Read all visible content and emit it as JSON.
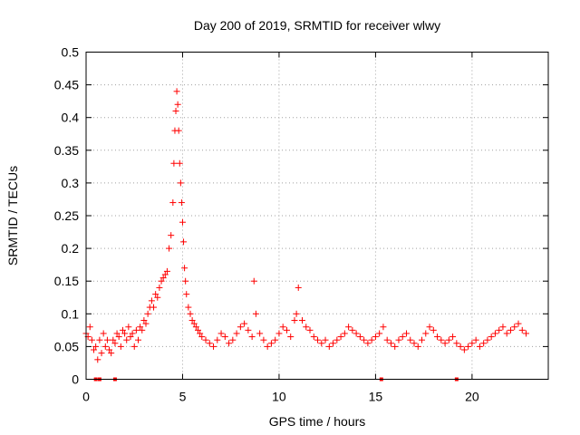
{
  "chart_data": {
    "type": "scatter",
    "title": "Day 200 of 2019, SRMTID for receiver wlwy",
    "xlabel": "GPS time / hours",
    "ylabel": "SRMTID / TECUs",
    "xlim": [
      0,
      23.95
    ],
    "ylim": [
      0,
      0.5
    ],
    "xticks": [
      0,
      5,
      10,
      15,
      20
    ],
    "xtick_labels": [
      "0",
      "5",
      "10",
      "15",
      "20"
    ],
    "yticks": [
      0,
      0.05,
      0.1,
      0.15,
      0.2,
      0.25,
      0.3,
      0.35,
      0.4,
      0.45,
      0.5
    ],
    "ytick_labels": [
      "0",
      "0.05",
      "0.1",
      "0.15",
      "0.2",
      "0.25",
      "0.3",
      "0.35",
      "0.4",
      "0.45",
      "0.5"
    ],
    "grid": true,
    "marker": "+",
    "color": "#ff0000",
    "baseline_markers_x": [
      0.5,
      0.7,
      1.5,
      15.3,
      19.2
    ],
    "series": [
      {
        "name": "SRMTID",
        "x": [
          0.0,
          0.1,
          0.2,
          0.3,
          0.4,
          0.5,
          0.6,
          0.7,
          0.8,
          0.9,
          1.0,
          1.1,
          1.2,
          1.3,
          1.4,
          1.5,
          1.6,
          1.7,
          1.8,
          1.9,
          2.0,
          2.1,
          2.2,
          2.3,
          2.4,
          2.5,
          2.6,
          2.7,
          2.8,
          2.9,
          3.0,
          3.1,
          3.2,
          3.3,
          3.4,
          3.5,
          3.6,
          3.7,
          3.8,
          3.9,
          4.0,
          4.1,
          4.2,
          4.3,
          4.4,
          4.5,
          4.55,
          4.6,
          4.65,
          4.7,
          4.75,
          4.8,
          4.85,
          4.9,
          4.95,
          5.0,
          5.05,
          5.1,
          5.15,
          5.2,
          5.3,
          5.4,
          5.5,
          5.6,
          5.7,
          5.8,
          5.9,
          6.0,
          6.2,
          6.4,
          6.6,
          6.8,
          7.0,
          7.2,
          7.4,
          7.6,
          7.8,
          8.0,
          8.2,
          8.4,
          8.6,
          8.7,
          8.8,
          9.0,
          9.2,
          9.4,
          9.6,
          9.8,
          10.0,
          10.2,
          10.4,
          10.6,
          10.8,
          10.9,
          11.0,
          11.2,
          11.4,
          11.6,
          11.8,
          12.0,
          12.2,
          12.4,
          12.6,
          12.8,
          13.0,
          13.2,
          13.4,
          13.6,
          13.8,
          14.0,
          14.2,
          14.4,
          14.6,
          14.8,
          15.0,
          15.2,
          15.4,
          15.6,
          15.8,
          16.0,
          16.2,
          16.4,
          16.6,
          16.8,
          17.0,
          17.2,
          17.4,
          17.6,
          17.8,
          18.0,
          18.2,
          18.4,
          18.6,
          18.8,
          19.0,
          19.2,
          19.4,
          19.6,
          19.8,
          20.0,
          20.2,
          20.4,
          20.6,
          20.8,
          21.0,
          21.2,
          21.4,
          21.6,
          21.8,
          22.0,
          22.2,
          22.4,
          22.6,
          22.8
        ],
        "y": [
          0.07,
          0.065,
          0.08,
          0.06,
          0.045,
          0.05,
          0.03,
          0.06,
          0.04,
          0.07,
          0.05,
          0.06,
          0.045,
          0.04,
          0.06,
          0.055,
          0.07,
          0.065,
          0.05,
          0.075,
          0.07,
          0.06,
          0.08,
          0.065,
          0.07,
          0.05,
          0.075,
          0.06,
          0.08,
          0.075,
          0.09,
          0.085,
          0.1,
          0.11,
          0.12,
          0.11,
          0.13,
          0.125,
          0.14,
          0.15,
          0.155,
          0.16,
          0.165,
          0.2,
          0.22,
          0.27,
          0.33,
          0.38,
          0.41,
          0.44,
          0.42,
          0.38,
          0.33,
          0.3,
          0.27,
          0.24,
          0.21,
          0.17,
          0.15,
          0.13,
          0.11,
          0.1,
          0.09,
          0.085,
          0.08,
          0.075,
          0.07,
          0.065,
          0.06,
          0.055,
          0.05,
          0.06,
          0.07,
          0.065,
          0.055,
          0.06,
          0.07,
          0.08,
          0.085,
          0.075,
          0.065,
          0.15,
          0.1,
          0.07,
          0.06,
          0.05,
          0.055,
          0.06,
          0.07,
          0.08,
          0.075,
          0.065,
          0.09,
          0.1,
          0.14,
          0.09,
          0.08,
          0.075,
          0.065,
          0.06,
          0.055,
          0.06,
          0.05,
          0.055,
          0.06,
          0.065,
          0.07,
          0.08,
          0.075,
          0.07,
          0.065,
          0.06,
          0.055,
          0.06,
          0.065,
          0.07,
          0.08,
          0.06,
          0.055,
          0.05,
          0.06,
          0.065,
          0.07,
          0.06,
          0.055,
          0.05,
          0.06,
          0.07,
          0.08,
          0.075,
          0.065,
          0.06,
          0.055,
          0.06,
          0.065,
          0.055,
          0.05,
          0.045,
          0.05,
          0.055,
          0.06,
          0.05,
          0.055,
          0.06,
          0.065,
          0.07,
          0.075,
          0.08,
          0.07,
          0.075,
          0.08,
          0.085,
          0.075,
          0.07
        ]
      }
    ]
  }
}
